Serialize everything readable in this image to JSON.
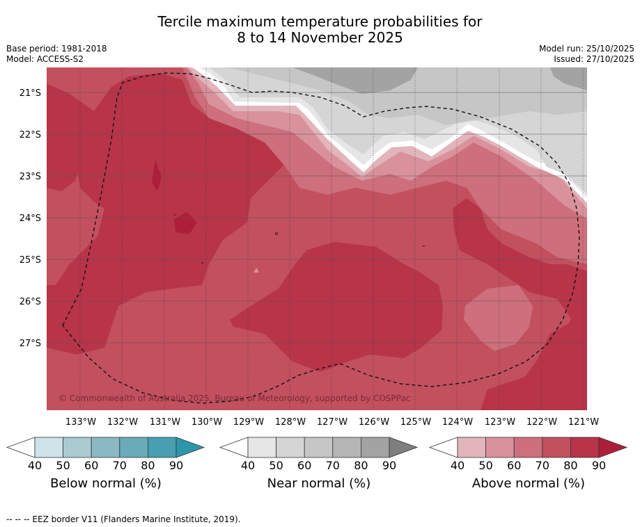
{
  "title": {
    "line1": "Tercile maximum temperature probabilities for",
    "line2": "8 to 14 November 2025"
  },
  "meta": {
    "base_period": "Base period: 1981-2018",
    "model": "Model: ACCESS-S2",
    "model_run": "Model run: 25/10/2025",
    "issued": "Issued: 27/10/2025"
  },
  "map": {
    "copyright": "© Commonwealth of Australia 2025, Bureau of Meteorology, supported by COSPPac",
    "lat_labels": [
      "21°S",
      "22°S",
      "23°S",
      "24°S",
      "25°S",
      "26°S",
      "27°S"
    ],
    "lon_labels": [
      "133°W",
      "132°W",
      "131°W",
      "130°W",
      "129°W",
      "128°W",
      "127°W",
      "126°W",
      "125°W",
      "124°W",
      "123°W",
      "122°W",
      "121°W"
    ]
  },
  "colorbars": {
    "ticks": [
      "40",
      "50",
      "60",
      "70",
      "80",
      "90"
    ],
    "below": {
      "label": "Below normal (%)",
      "colors": [
        "#ffffff",
        "#cde3e8",
        "#a9cbd1",
        "#8ab9c4",
        "#6aabb9",
        "#479fb1",
        "#2d96ab"
      ]
    },
    "near": {
      "label": "Near normal (%)",
      "colors": [
        "#ffffff",
        "#e6e6e6",
        "#d5d5d5",
        "#c6c6c6",
        "#b5b5b5",
        "#a3a3a3",
        "#7f7f7f"
      ]
    },
    "above": {
      "label": "Above normal (%)",
      "colors": [
        "#ffffff",
        "#e2b5bc",
        "#d9929c",
        "#cd6f7c",
        "#c2505f",
        "#b73449",
        "#ad1f39"
      ]
    }
  },
  "footer": "--  --  -- EEZ border V11 (Flanders Marine Institute, 2019)."
}
